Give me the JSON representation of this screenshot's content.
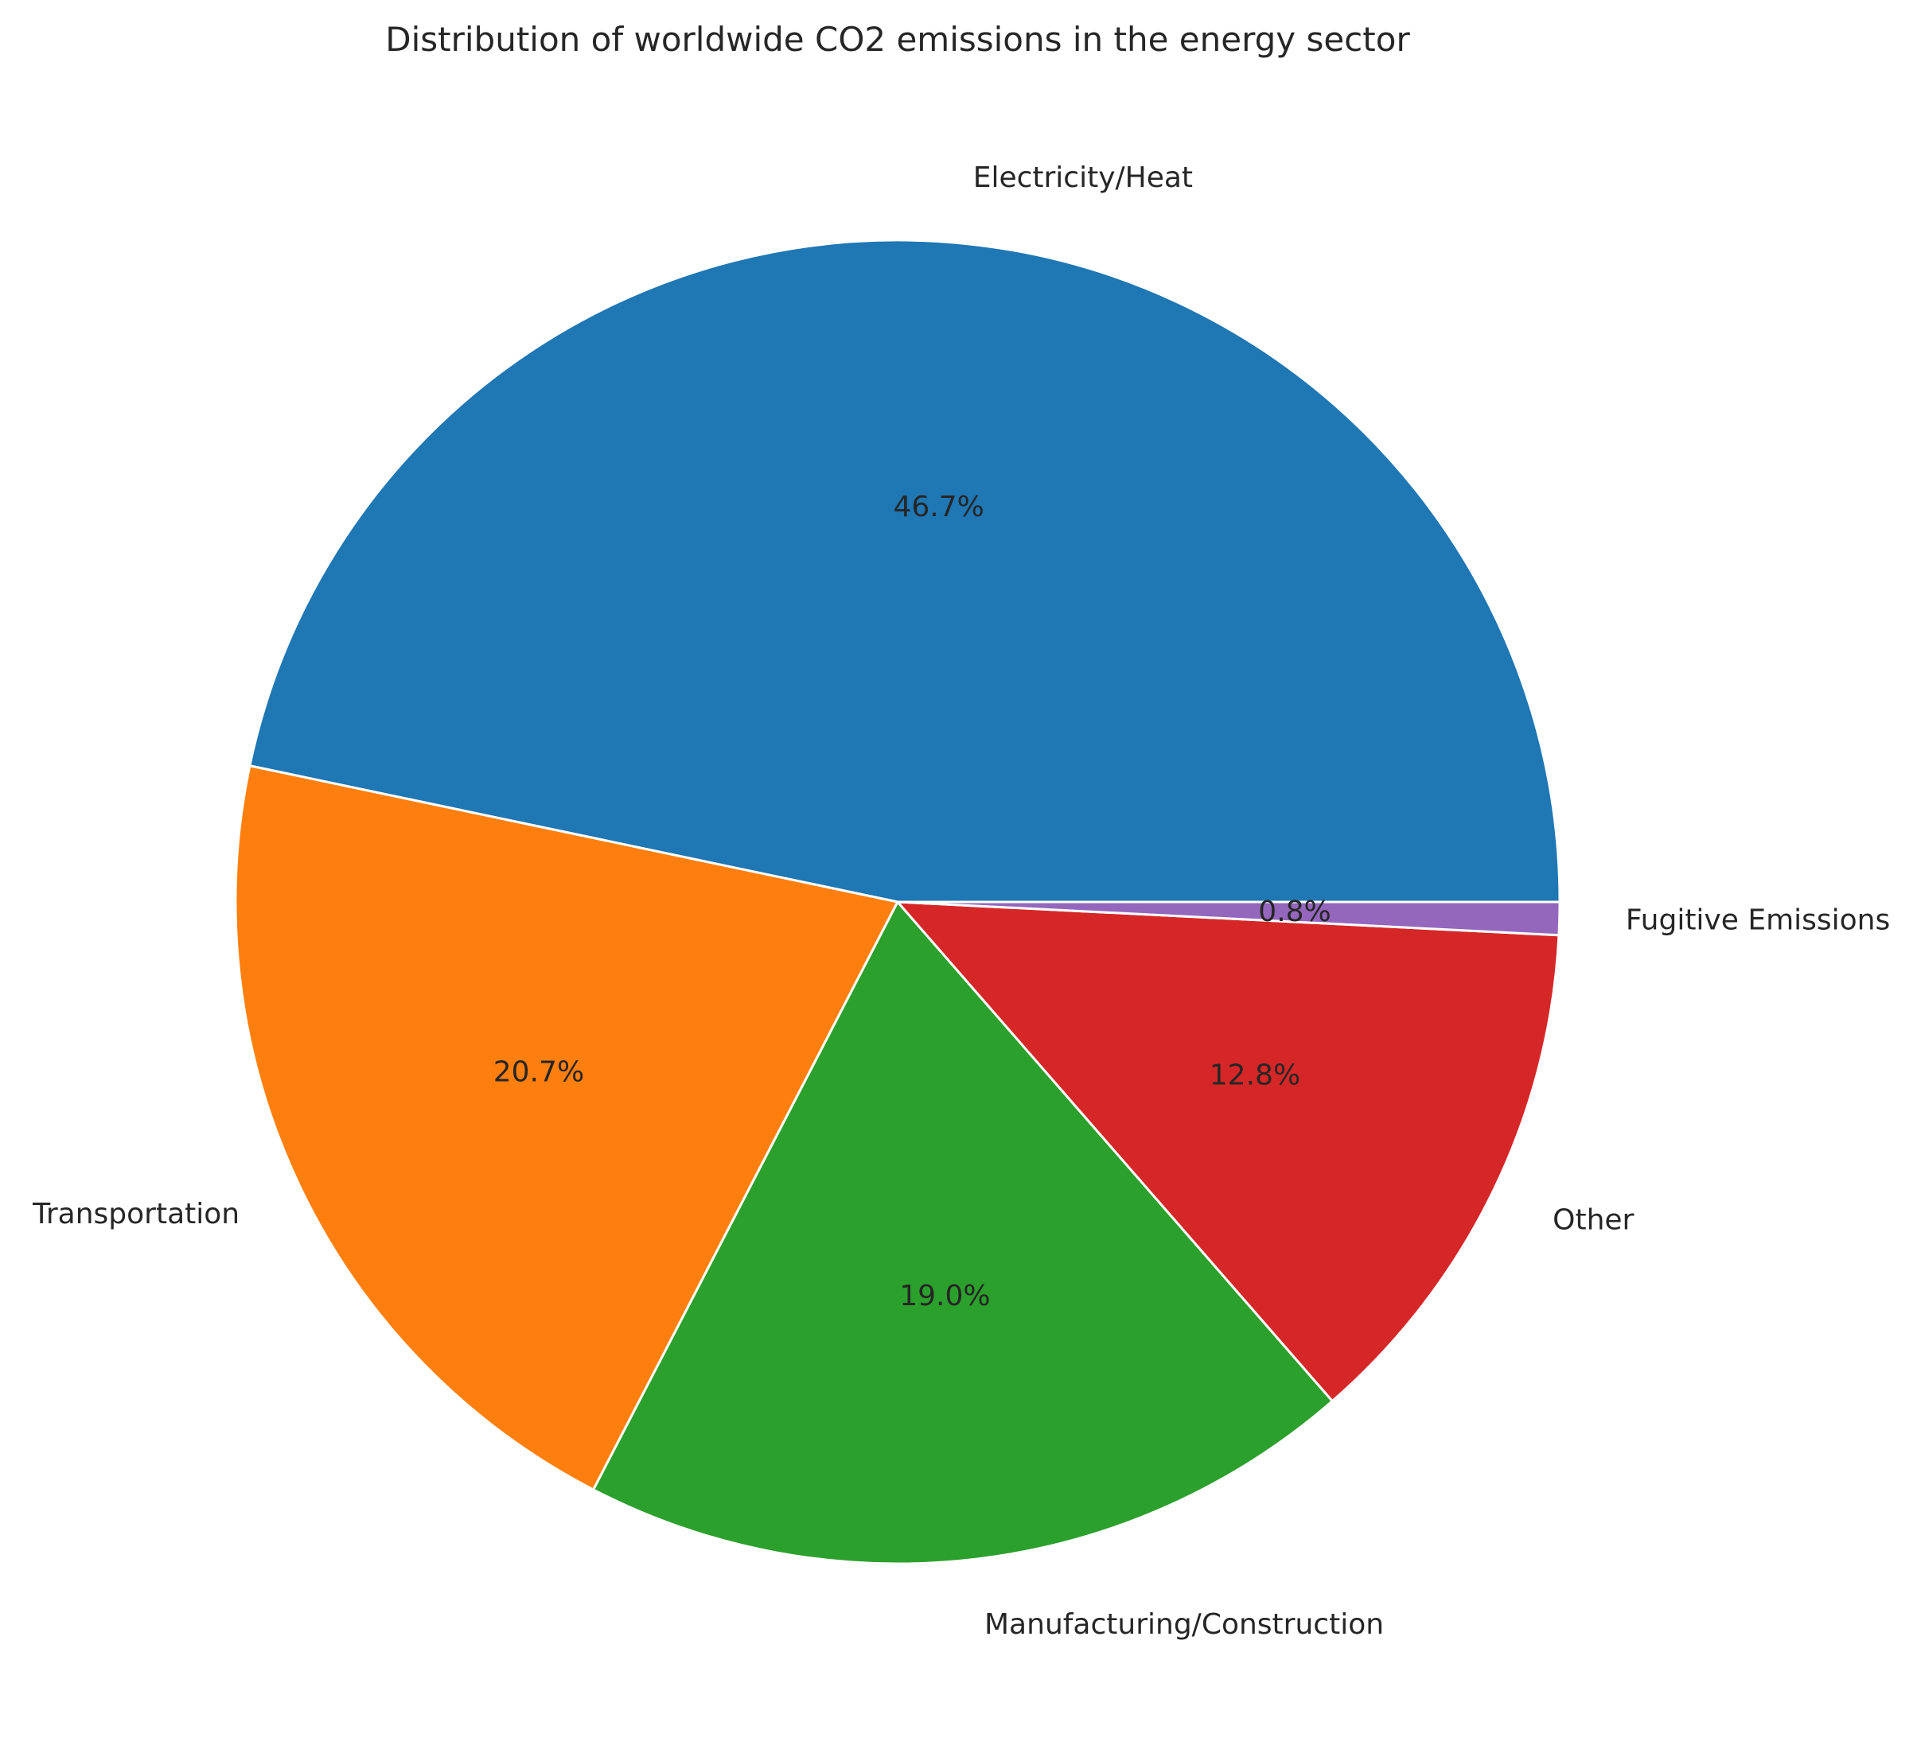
{
  "chart_data": {
    "type": "pie",
    "title": "Distribution of worldwide CO2 emissions in the energy sector",
    "slices": [
      {
        "label": "Electricity/Heat",
        "value": 46.7,
        "pct_text": "46.7%",
        "color": "#1f77b4"
      },
      {
        "label": "Transportation",
        "value": 20.7,
        "pct_text": "20.7%",
        "color": "#ff7f0e"
      },
      {
        "label": "Manufacturing/Construction",
        "value": 19.0,
        "pct_text": "19.0%",
        "color": "#2ca02c"
      },
      {
        "label": "Other",
        "value": 12.8,
        "pct_text": "12.8%",
        "color": "#d62728"
      },
      {
        "label": "Fugitive Emissions",
        "value": 0.8,
        "pct_text": "0.8%",
        "color": "#9467bd"
      }
    ],
    "start_angle": "0 degrees (3 o'clock)",
    "direction": "counterclockwise",
    "legend": "none, labels placed outside slices"
  }
}
